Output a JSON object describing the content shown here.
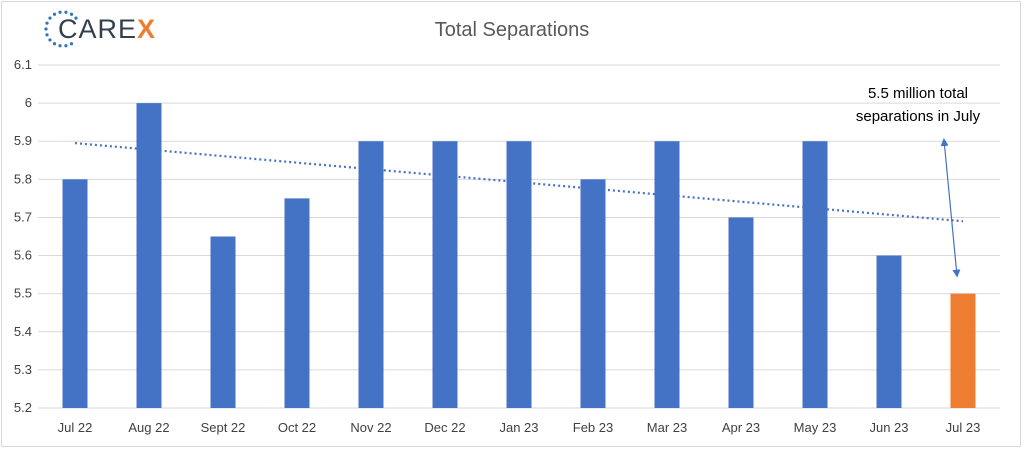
{
  "brand": {
    "logo_main": "CARE",
    "logo_accent": "X",
    "logo_icon": "dotted-circle-icon",
    "accent_color": "#ed7d31",
    "dot_color": "#2e75b6"
  },
  "chart_data": {
    "type": "bar",
    "title": "Total Separations",
    "xlabel": "",
    "ylabel": "",
    "categories": [
      "Jul 22",
      "Aug 22",
      "Sept 22",
      "Oct 22",
      "Nov 22",
      "Dec 22",
      "Jan 23",
      "Feb 23",
      "Mar 23",
      "Apr 23",
      "May 23",
      "Jun 23",
      "Jul 23"
    ],
    "values": [
      5.8,
      6.0,
      5.65,
      5.75,
      5.9,
      5.9,
      5.9,
      5.8,
      5.9,
      5.7,
      5.9,
      5.6,
      5.5
    ],
    "ylim": [
      5.2,
      6.1
    ],
    "yticks": [
      "5.2",
      "5.3",
      "5.4",
      "5.5",
      "5.6",
      "5.7",
      "5.8",
      "5.9",
      "6",
      "6.1"
    ],
    "grid": true,
    "legend": "none",
    "bar_color": "#4472c4",
    "highlight_color": "#ed7d31",
    "highlight_index": 12,
    "trendline": {
      "type": "linear",
      "style": "dotted",
      "color": "#4472c4",
      "start_value": 5.895,
      "end_value": 5.69
    },
    "annotation": {
      "lines": [
        "5.5 million total",
        "separations in July"
      ],
      "points_to": "Jul 23"
    }
  }
}
